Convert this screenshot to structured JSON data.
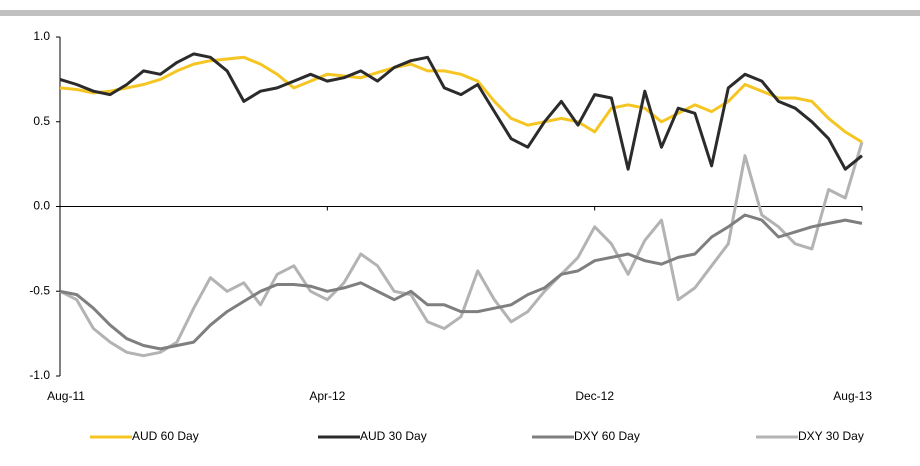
{
  "chart_data": {
    "type": "line",
    "categories": [
      "Aug-11",
      null,
      null,
      null,
      null,
      null,
      null,
      null,
      null,
      null,
      null,
      null,
      null,
      null,
      null,
      null,
      "Apr-12",
      null,
      null,
      null,
      null,
      null,
      null,
      null,
      null,
      null,
      null,
      null,
      null,
      null,
      null,
      null,
      "Dec-12",
      null,
      null,
      null,
      null,
      null,
      null,
      null,
      null,
      null,
      null,
      null,
      null,
      null,
      null,
      null,
      "Aug-13"
    ],
    "ylim": [
      -1,
      1
    ],
    "yticks": [
      {
        "value": 1,
        "label": "1.0"
      },
      0.5,
      {
        "value": 0,
        "label": "0.0"
      },
      -0.5,
      {
        "value": -1,
        "label": "-1.0"
      }
    ],
    "series": [
      {
        "name": "AUD 60 Day",
        "color": "#f5c623",
        "values": [
          0.7,
          0.69,
          0.67,
          0.68,
          0.7,
          0.72,
          0.75,
          0.8,
          0.84,
          0.86,
          0.87,
          0.88,
          0.84,
          0.78,
          0.7,
          0.74,
          0.78,
          0.77,
          0.76,
          0.79,
          0.82,
          0.84,
          0.8,
          0.8,
          0.78,
          0.74,
          0.62,
          0.52,
          0.48,
          0.5,
          0.52,
          0.5,
          0.44,
          0.58,
          0.6,
          0.58,
          0.5,
          0.55,
          0.6,
          0.56,
          0.62,
          0.72,
          0.68,
          0.64,
          0.64,
          0.62,
          0.52,
          0.44,
          0.38
        ]
      },
      {
        "name": "AUD 30 Day",
        "color": "#2b2b2b",
        "values": [
          0.75,
          0.72,
          0.68,
          0.66,
          0.72,
          0.8,
          0.78,
          0.85,
          0.9,
          0.88,
          0.8,
          0.62,
          0.68,
          0.7,
          0.74,
          0.78,
          0.74,
          0.76,
          0.8,
          0.74,
          0.82,
          0.86,
          0.88,
          0.7,
          0.66,
          0.72,
          0.56,
          0.4,
          0.35,
          0.5,
          0.62,
          0.48,
          0.66,
          0.64,
          0.22,
          0.68,
          0.35,
          0.58,
          0.55,
          0.24,
          0.7,
          0.78,
          0.74,
          0.62,
          0.58,
          0.5,
          0.4,
          0.22,
          0.3
        ]
      },
      {
        "name": "DXY 60 Day",
        "color": "#7f7f7f",
        "values": [
          -0.5,
          -0.52,
          -0.6,
          -0.7,
          -0.78,
          -0.82,
          -0.84,
          -0.82,
          -0.8,
          -0.7,
          -0.62,
          -0.56,
          -0.5,
          -0.46,
          -0.46,
          -0.47,
          -0.5,
          -0.48,
          -0.45,
          -0.5,
          -0.55,
          -0.5,
          -0.58,
          -0.58,
          -0.62,
          -0.62,
          -0.6,
          -0.58,
          -0.52,
          -0.48,
          -0.4,
          -0.38,
          -0.32,
          -0.3,
          -0.28,
          -0.32,
          -0.34,
          -0.3,
          -0.28,
          -0.18,
          -0.12,
          -0.05,
          -0.08,
          -0.18,
          -0.15,
          -0.12,
          -0.1,
          -0.08,
          -0.1
        ]
      },
      {
        "name": "DXY 30 Day",
        "color": "#b3b3b3",
        "values": [
          -0.5,
          -0.55,
          -0.72,
          -0.8,
          -0.86,
          -0.88,
          -0.86,
          -0.8,
          -0.6,
          -0.42,
          -0.5,
          -0.45,
          -0.58,
          -0.4,
          -0.35,
          -0.5,
          -0.55,
          -0.45,
          -0.28,
          -0.35,
          -0.5,
          -0.52,
          -0.68,
          -0.72,
          -0.65,
          -0.38,
          -0.55,
          -0.68,
          -0.62,
          -0.5,
          -0.4,
          -0.3,
          -0.12,
          -0.22,
          -0.4,
          -0.2,
          -0.08,
          -0.55,
          -0.48,
          -0.35,
          -0.22,
          0.3,
          -0.05,
          -0.12,
          -0.22,
          -0.25,
          0.1,
          0.05,
          0.38
        ]
      }
    ]
  }
}
